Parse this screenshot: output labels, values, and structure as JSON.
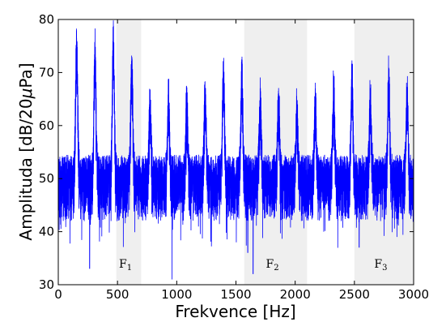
{
  "chart_data": {
    "type": "line",
    "title": "",
    "xlabel": "Frekvence [Hz]",
    "ylabel": "Amplituda [dB/20",
    "ylabel_symbol": "μ",
    "ylabel_tail": "Pa]",
    "xlim": [
      0,
      3000
    ],
    "ylim": [
      30,
      80
    ],
    "x_ticks": [
      0,
      500,
      1000,
      1500,
      2000,
      2500,
      3000
    ],
    "y_ticks": [
      30,
      40,
      50,
      60,
      70,
      80
    ],
    "grid": false,
    "legend": "none",
    "line_color": "#0000ff",
    "band_color": "#efefef",
    "bands": [
      {
        "label": "F",
        "subscript": "1",
        "x_start": 490,
        "x_end": 700
      },
      {
        "label": "F",
        "subscript": "2",
        "x_start": 1570,
        "x_end": 2100
      },
      {
        "label": "F",
        "subscript": "3",
        "x_start": 2500,
        "x_end": 3000
      }
    ],
    "series": [
      {
        "baseline": 50,
        "noise_amplitude": 5,
        "harmonics": [
          {
            "x": 155,
            "peak": 76.5
          },
          {
            "x": 310,
            "peak": 75
          },
          {
            "x": 465,
            "peak": 76.5
          },
          {
            "x": 620,
            "peak": 72.5
          },
          {
            "x": 775,
            "peak": 64.5
          },
          {
            "x": 930,
            "peak": 66
          },
          {
            "x": 1085,
            "peak": 65
          },
          {
            "x": 1240,
            "peak": 67
          },
          {
            "x": 1395,
            "peak": 70.5
          },
          {
            "x": 1550,
            "peak": 70.5
          },
          {
            "x": 1705,
            "peak": 66
          },
          {
            "x": 1860,
            "peak": 65.5
          },
          {
            "x": 2015,
            "peak": 64
          },
          {
            "x": 2170,
            "peak": 65
          },
          {
            "x": 2325,
            "peak": 67.5
          },
          {
            "x": 2480,
            "peak": 69.5
          },
          {
            "x": 2635,
            "peak": 66.5
          },
          {
            "x": 2790,
            "peak": 69.5
          },
          {
            "x": 2945,
            "peak": 67
          }
        ],
        "dips": [
          {
            "x": 0,
            "min": 34
          },
          {
            "x": 265,
            "min": 33
          },
          {
            "x": 960,
            "min": 31
          },
          {
            "x": 1600,
            "min": 36
          },
          {
            "x": 1645,
            "min": 32
          },
          {
            "x": 2540,
            "min": 37
          }
        ]
      }
    ]
  }
}
